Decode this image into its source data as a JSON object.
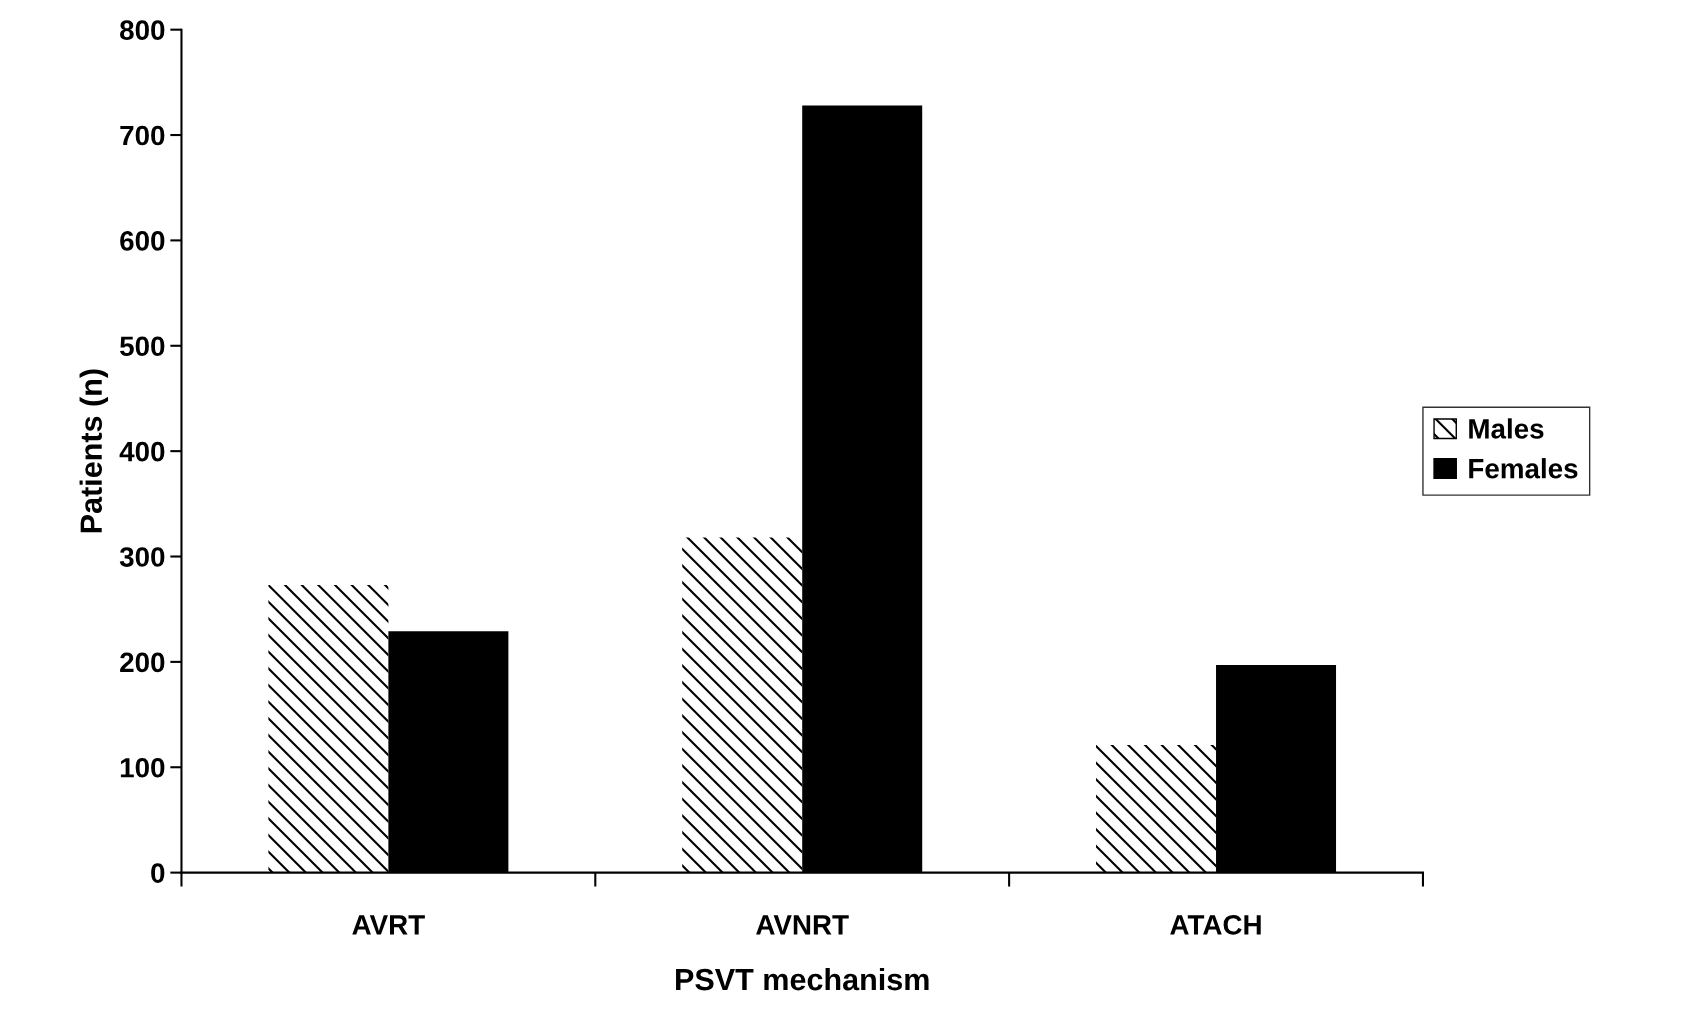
{
  "chart_data": {
    "type": "bar",
    "xlabel": "PSVT mechanism",
    "ylabel": "Patients (n)",
    "categories": [
      "AVRT",
      "AVNRT",
      "ATACH"
    ],
    "series": [
      {
        "name": "Males",
        "color": "#ffffff",
        "values": [
          273,
          318,
          121
        ]
      },
      {
        "name": "Females",
        "color": "#000000",
        "values": [
          229,
          728,
          197
        ]
      }
    ],
    "ylim": [
      0,
      800
    ],
    "yticks": [
      0,
      100,
      200,
      300,
      400,
      500,
      600,
      700,
      800
    ],
    "grid": false,
    "legend": "right"
  }
}
